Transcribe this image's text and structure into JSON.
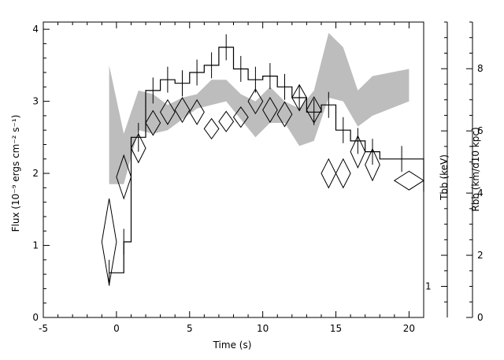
{
  "chart_data": {
    "type": "line",
    "title": "",
    "xlabel": "Time (s)",
    "ylabel": "Flux (10⁻⁹ ergs cm⁻² s⁻¹)",
    "y2label_outer": "Rbb (km/d10 kpc)",
    "y2label_inner": "Tbb (keV)",
    "xlim": [
      -5,
      21
    ],
    "ylim": [
      0,
      4.1
    ],
    "inner_right_axis": {
      "range": [
        0,
        9.5
      ],
      "ticks": [
        2,
        4,
        6,
        8
      ],
      "extra_tick_value": 1,
      "extra_tick_label": "1"
    },
    "outer_right_axis": {
      "range": [
        0,
        9.5
      ],
      "ticks": [
        0,
        2,
        4,
        6,
        8
      ]
    },
    "x_ticks": [
      -5,
      0,
      5,
      10,
      15,
      20
    ],
    "y_ticks": [
      0,
      1,
      2,
      3,
      4
    ],
    "flux_histogram": {
      "edges": [
        -0.5,
        0.5,
        1,
        2,
        3,
        4,
        5,
        6,
        7,
        8,
        9,
        10,
        11,
        12,
        13,
        14,
        15,
        16,
        17,
        18,
        21
      ],
      "values": [
        0.62,
        1.05,
        2.5,
        3.15,
        3.3,
        3.25,
        3.4,
        3.5,
        3.75,
        3.45,
        3.3,
        3.35,
        3.2,
        3.05,
        2.85,
        2.95,
        2.6,
        2.45,
        2.3,
        2.2
      ],
      "error_bars": [
        {
          "x": -0.5,
          "y": 0.62,
          "xlo": -0.5,
          "xhi": 0.5,
          "yerr": 0.18
        },
        {
          "x": 0.5,
          "y": 1.05,
          "xlo": 0.5,
          "xhi": 1,
          "yerr": 0.18
        },
        {
          "x": 1.5,
          "y": 2.5,
          "xlo": 1,
          "xhi": 2,
          "yerr": 0.2
        },
        {
          "x": 2.5,
          "y": 3.15,
          "xlo": 2,
          "xhi": 3,
          "yerr": 0.18
        },
        {
          "x": 3.5,
          "y": 3.3,
          "xlo": 3,
          "xhi": 4,
          "yerr": 0.18
        },
        {
          "x": 4.5,
          "y": 3.25,
          "xlo": 4,
          "xhi": 5,
          "yerr": 0.18
        },
        {
          "x": 5.5,
          "y": 3.4,
          "xlo": 5,
          "xhi": 6,
          "yerr": 0.18
        },
        {
          "x": 6.5,
          "y": 3.5,
          "xlo": 6,
          "xhi": 7,
          "yerr": 0.18
        },
        {
          "x": 7.5,
          "y": 3.75,
          "xlo": 7,
          "xhi": 8,
          "yerr": 0.18
        },
        {
          "x": 8.5,
          "y": 3.45,
          "xlo": 8,
          "xhi": 9,
          "yerr": 0.18
        },
        {
          "x": 9.5,
          "y": 3.3,
          "xlo": 9,
          "xhi": 10,
          "yerr": 0.18
        },
        {
          "x": 10.5,
          "y": 3.35,
          "xlo": 10,
          "xhi": 11,
          "yerr": 0.18
        },
        {
          "x": 11.5,
          "y": 3.2,
          "xlo": 11,
          "xhi": 12,
          "yerr": 0.18
        },
        {
          "x": 12.5,
          "y": 3.05,
          "xlo": 12,
          "xhi": 13,
          "yerr": 0.18
        },
        {
          "x": 13.5,
          "y": 2.85,
          "xlo": 13,
          "xhi": 14,
          "yerr": 0.18
        },
        {
          "x": 14.5,
          "y": 2.95,
          "xlo": 14,
          "xhi": 15,
          "yerr": 0.18
        },
        {
          "x": 15.5,
          "y": 2.6,
          "xlo": 15,
          "xhi": 16,
          "yerr": 0.18
        },
        {
          "x": 16.5,
          "y": 2.45,
          "xlo": 16,
          "xhi": 17,
          "yerr": 0.18
        },
        {
          "x": 17.5,
          "y": 2.3,
          "xlo": 17,
          "xhi": 18,
          "yerr": 0.18
        },
        {
          "x": 19.5,
          "y": 2.2,
          "xlo": 18,
          "xhi": 21,
          "yerr": 0.18
        }
      ]
    },
    "diamonds_kT": [
      {
        "x": -0.5,
        "y": 1.05,
        "xerr": 0.5,
        "yerr": 0.6
      },
      {
        "x": 0.5,
        "y": 1.95,
        "xerr": 0.5,
        "yerr": 0.3
      },
      {
        "x": 1.5,
        "y": 2.35,
        "xerr": 0.5,
        "yerr": 0.2
      },
      {
        "x": 2.5,
        "y": 2.7,
        "xerr": 0.5,
        "yerr": 0.17
      },
      {
        "x": 3.5,
        "y": 2.85,
        "xerr": 0.5,
        "yerr": 0.17
      },
      {
        "x": 4.5,
        "y": 2.88,
        "xerr": 0.5,
        "yerr": 0.17
      },
      {
        "x": 5.5,
        "y": 2.85,
        "xerr": 0.5,
        "yerr": 0.17
      },
      {
        "x": 6.5,
        "y": 2.62,
        "xerr": 0.5,
        "yerr": 0.14
      },
      {
        "x": 7.5,
        "y": 2.72,
        "xerr": 0.5,
        "yerr": 0.14
      },
      {
        "x": 8.5,
        "y": 2.78,
        "xerr": 0.5,
        "yerr": 0.14
      },
      {
        "x": 9.5,
        "y": 3.0,
        "xerr": 0.5,
        "yerr": 0.17
      },
      {
        "x": 10.5,
        "y": 2.88,
        "xerr": 0.5,
        "yerr": 0.17
      },
      {
        "x": 11.5,
        "y": 2.82,
        "xerr": 0.5,
        "yerr": 0.17
      },
      {
        "x": 12.5,
        "y": 3.05,
        "xerr": 0.5,
        "yerr": 0.18
      },
      {
        "x": 13.5,
        "y": 2.88,
        "xerr": 0.5,
        "yerr": 0.18
      },
      {
        "x": 14.5,
        "y": 2.0,
        "xerr": 0.5,
        "yerr": 0.2
      },
      {
        "x": 15.5,
        "y": 2.0,
        "xerr": 0.5,
        "yerr": 0.2
      },
      {
        "x": 16.5,
        "y": 2.3,
        "xerr": 0.5,
        "yerr": 0.22
      },
      {
        "x": 17.5,
        "y": 2.12,
        "xerr": 0.5,
        "yerr": 0.22
      },
      {
        "x": 20.0,
        "y": 1.9,
        "xerr": 1.0,
        "yerr": 0.13
      }
    ],
    "band_Rbb": {
      "x": [
        -0.5,
        0.5,
        1.5,
        2.5,
        3.5,
        4.5,
        5.5,
        6.5,
        7.5,
        8.5,
        9.5,
        10.5,
        11.5,
        12.5,
        13.5,
        14.5,
        15.5,
        16.5,
        17.5,
        20.0
      ],
      "upper": [
        3.5,
        2.55,
        3.15,
        3.1,
        2.95,
        3.05,
        3.1,
        3.3,
        3.3,
        3.1,
        3.0,
        3.2,
        3.0,
        2.9,
        3.15,
        3.95,
        3.75,
        3.15,
        3.35,
        3.45
      ],
      "lower": [
        1.85,
        1.85,
        2.6,
        2.55,
        2.6,
        2.75,
        2.9,
        2.95,
        3.0,
        2.75,
        2.5,
        2.7,
        2.7,
        2.38,
        2.45,
        3.05,
        3.0,
        2.65,
        2.8,
        3.0
      ]
    },
    "colors": {
      "band": "#bdbdbd",
      "lines": "#000000",
      "background": "#ffffff"
    }
  }
}
